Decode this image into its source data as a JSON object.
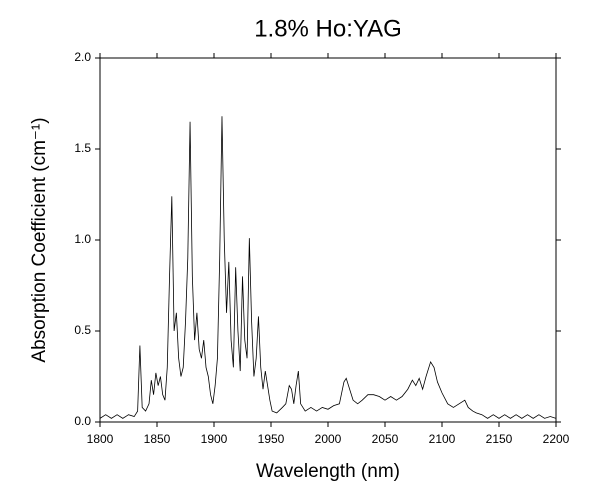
{
  "chart_data": {
    "type": "line",
    "title": "1.8% Ho:YAG",
    "xlabel": "Wavelength (nm)",
    "ylabel": "Absorption Coefficient (cm⁻¹)",
    "xlim": [
      1800,
      2200
    ],
    "xticks": [
      1800,
      1850,
      1900,
      1950,
      2000,
      2050,
      2100,
      2150,
      2200
    ],
    "ylim": [
      0,
      2
    ],
    "yticks": [
      {
        "value": 0,
        "label": "0.0"
      },
      0.5,
      {
        "value": 1,
        "label": "1.0"
      },
      1.5,
      {
        "value": 2,
        "label": "2.0"
      }
    ],
    "color": "#000000",
    "x": [
      1800,
      1805,
      1810,
      1815,
      1820,
      1825,
      1830,
      1833,
      1835,
      1837,
      1840,
      1843,
      1845,
      1847,
      1849,
      1851,
      1853,
      1855,
      1857,
      1859,
      1861,
      1863,
      1865,
      1867,
      1869,
      1871,
      1873,
      1875,
      1877,
      1879,
      1881,
      1883,
      1885,
      1887,
      1889,
      1891,
      1893,
      1895,
      1897,
      1899,
      1901,
      1903,
      1905,
      1907,
      1909,
      1911,
      1913,
      1915,
      1917,
      1919,
      1921,
      1923,
      1925,
      1927,
      1929,
      1931,
      1933,
      1935,
      1937,
      1939,
      1941,
      1943,
      1945,
      1947,
      1949,
      1951,
      1955,
      1960,
      1963,
      1966,
      1968,
      1970,
      1972,
      1974,
      1976,
      1980,
      1985,
      1990,
      1995,
      2000,
      2005,
      2010,
      2014,
      2016,
      2018,
      2022,
      2026,
      2030,
      2035,
      2040,
      2045,
      2050,
      2055,
      2060,
      2065,
      2070,
      2074,
      2077,
      2080,
      2083,
      2086,
      2090,
      2093,
      2096,
      2100,
      2105,
      2110,
      2115,
      2120,
      2123,
      2127,
      2130,
      2135,
      2140,
      2145,
      2150,
      2155,
      2160,
      2165,
      2170,
      2175,
      2180,
      2185,
      2190,
      2195,
      2200
    ],
    "values": [
      0.02,
      0.04,
      0.02,
      0.04,
      0.02,
      0.04,
      0.03,
      0.06,
      0.42,
      0.08,
      0.06,
      0.1,
      0.23,
      0.15,
      0.27,
      0.2,
      0.25,
      0.15,
      0.12,
      0.3,
      0.8,
      1.24,
      0.5,
      0.6,
      0.35,
      0.25,
      0.3,
      0.55,
      0.9,
      1.65,
      0.8,
      0.45,
      0.6,
      0.4,
      0.35,
      0.45,
      0.3,
      0.25,
      0.15,
      0.1,
      0.2,
      0.35,
      0.9,
      1.68,
      1.0,
      0.6,
      0.88,
      0.45,
      0.3,
      0.85,
      0.5,
      0.28,
      0.8,
      0.45,
      0.35,
      1.01,
      0.55,
      0.25,
      0.35,
      0.58,
      0.3,
      0.18,
      0.28,
      0.2,
      0.12,
      0.06,
      0.05,
      0.08,
      0.1,
      0.2,
      0.18,
      0.1,
      0.2,
      0.28,
      0.1,
      0.06,
      0.08,
      0.06,
      0.08,
      0.07,
      0.09,
      0.1,
      0.22,
      0.24,
      0.2,
      0.12,
      0.1,
      0.12,
      0.15,
      0.15,
      0.14,
      0.12,
      0.14,
      0.12,
      0.14,
      0.18,
      0.23,
      0.2,
      0.24,
      0.18,
      0.25,
      0.33,
      0.3,
      0.22,
      0.16,
      0.1,
      0.08,
      0.1,
      0.12,
      0.08,
      0.06,
      0.05,
      0.04,
      0.02,
      0.04,
      0.02,
      0.04,
      0.02,
      0.04,
      0.02,
      0.04,
      0.02,
      0.04,
      0.02,
      0.03,
      0.02
    ]
  }
}
